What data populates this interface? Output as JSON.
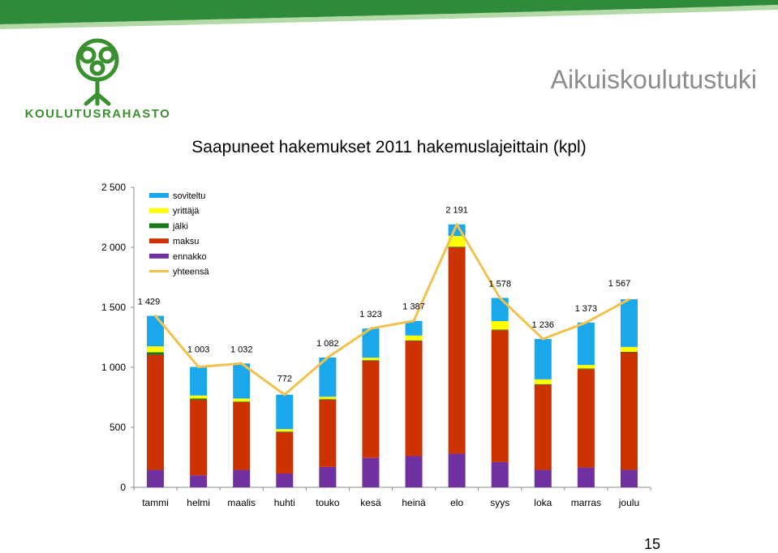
{
  "header": {
    "logo_text": "KOULUTUSRAHASTO",
    "section_title": "Aikuiskoulutustuki"
  },
  "page_number": "15",
  "colors": {
    "soviteltu": "#1aa7ec",
    "yrittaja": "#ffff00",
    "jalki": "#1a7a1a",
    "maksu": "#cc3300",
    "ennakko": "#7030a0",
    "yhteensa": "#f2c14e",
    "brand_green": "#3a8f2e"
  },
  "chart_data": {
    "type": "bar",
    "stacked": true,
    "title": "Saapuneet hakemukset 2011 hakemuslajeittain (kpl)",
    "categories": [
      "tammi",
      "helmi",
      "maalis",
      "huhti",
      "touko",
      "kesä",
      "heinä",
      "elo",
      "syys",
      "loka",
      "marras",
      "joulu"
    ],
    "ylim": [
      0,
      2500
    ],
    "yticks": [
      0,
      500,
      1000,
      1500,
      2000,
      2500
    ],
    "ytick_labels": [
      "0",
      "500",
      "1 000",
      "1 500",
      "2 000",
      "2 500"
    ],
    "legend_position": "top-left",
    "series": [
      {
        "name": "ennakko",
        "key": "ennakko",
        "values": [
          145,
          100,
          145,
          115,
          170,
          245,
          260,
          280,
          210,
          145,
          165,
          145
        ]
      },
      {
        "name": "maksu",
        "key": "maksu",
        "values": [
          960,
          630,
          565,
          345,
          560,
          810,
          960,
          1720,
          1100,
          710,
          820,
          980
        ]
      },
      {
        "name": "jälki",
        "key": "jalki",
        "values": [
          20,
          10,
          5,
          5,
          5,
          5,
          5,
          5,
          5,
          5,
          5,
          5
        ]
      },
      {
        "name": "yrittäjä",
        "key": "yrittaja",
        "values": [
          50,
          25,
          25,
          20,
          20,
          20,
          40,
          90,
          70,
          40,
          30,
          40
        ]
      },
      {
        "name": "soviteltu",
        "key": "soviteltu",
        "values": [
          254,
          238,
          292,
          287,
          327,
          243,
          122,
          96,
          193,
          336,
          353,
          397
        ]
      }
    ],
    "line_series": {
      "name": "yhteensä",
      "key": "yhteensa",
      "values": [
        1429,
        1003,
        1032,
        772,
        1082,
        1323,
        1387,
        2191,
        1578,
        1236,
        1373,
        1567
      ]
    },
    "total_labels": [
      "1 429",
      "1 003",
      "1 032",
      "772",
      "1 082",
      "1 323",
      "1 387",
      "2 191",
      "1 578",
      "1 236",
      "1 373",
      "1 567"
    ],
    "legend": [
      "soviteltu",
      "yrittäjä",
      "jälki",
      "maksu",
      "ennakko",
      "yhteensä"
    ]
  }
}
